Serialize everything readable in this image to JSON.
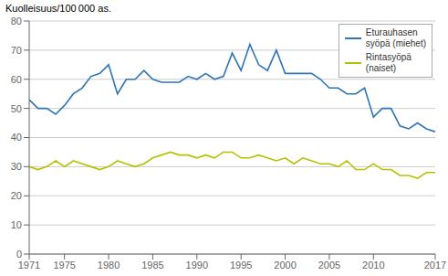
{
  "chart_data": {
    "type": "line",
    "title": "Kuolleisuus/100 000 as.",
    "x": [
      1971,
      1972,
      1973,
      1974,
      1975,
      1976,
      1977,
      1978,
      1979,
      1980,
      1981,
      1982,
      1983,
      1984,
      1985,
      1986,
      1987,
      1988,
      1989,
      1990,
      1991,
      1992,
      1993,
      1994,
      1995,
      1996,
      1997,
      1998,
      1999,
      2000,
      2001,
      2002,
      2003,
      2004,
      2005,
      2006,
      2007,
      2008,
      2009,
      2010,
      2011,
      2012,
      2013,
      2014,
      2015,
      2016,
      2017
    ],
    "series": [
      {
        "name": "Eturauhasen\nsyöpä (miehet)",
        "color": "#2e75b6",
        "values": [
          53,
          50,
          50,
          48,
          51,
          55,
          57,
          61,
          62,
          65,
          55,
          60,
          60,
          63,
          60,
          59,
          59,
          59,
          61,
          60,
          62,
          60,
          61,
          69,
          63,
          72,
          65,
          63,
          70,
          62,
          62,
          62,
          62,
          60,
          57,
          57,
          55,
          55,
          57,
          47,
          50,
          50,
          44,
          43,
          45,
          43,
          42
        ]
      },
      {
        "name": "Rintasyöpä\n(naiset)",
        "color": "#b5c200",
        "values": [
          30,
          29,
          30,
          32,
          30,
          32,
          31,
          30,
          29,
          30,
          32,
          31,
          30,
          31,
          33,
          34,
          35,
          34,
          34,
          33,
          34,
          33,
          35,
          35,
          33,
          33,
          34,
          33,
          32,
          33,
          31,
          33,
          32,
          31,
          31,
          30,
          32,
          29,
          29,
          31,
          29,
          29,
          27,
          27,
          26,
          28,
          28
        ]
      }
    ],
    "xlim": [
      1971,
      2017
    ],
    "xticks": [
      1971,
      1975,
      1980,
      1985,
      1990,
      1995,
      2000,
      2005,
      2010,
      2017
    ],
    "ylim": [
      0,
      80
    ],
    "yticks": [
      0,
      10,
      20,
      30,
      40,
      50,
      60,
      70,
      80
    ],
    "grid": true,
    "legend": "upper right"
  }
}
